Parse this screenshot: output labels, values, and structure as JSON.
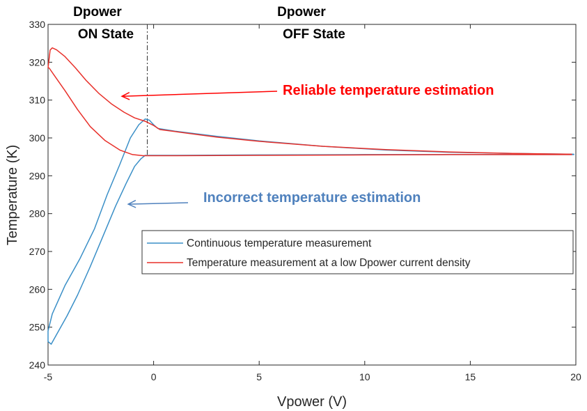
{
  "chart_data": {
    "type": "line",
    "xlabel": "Vpower (V)",
    "ylabel": "Temperature (K)",
    "xlim": [
      -5,
      20
    ],
    "ylim": [
      240,
      330
    ],
    "xticks": [
      -5,
      0,
      5,
      10,
      15,
      20
    ],
    "yticks": [
      240,
      250,
      260,
      270,
      280,
      290,
      300,
      310,
      320,
      330
    ],
    "grid": false,
    "legend_position": "center-right",
    "divider_x": -0.3,
    "state_labels": {
      "on": {
        "line1": "Dpower",
        "line2": "ON State"
      },
      "off": {
        "line1": "Dpower",
        "line2": "OFF State"
      }
    },
    "annotations": [
      {
        "text": "Reliable temperature estimation",
        "color": "#ff0000",
        "arrow_color": "#ff0000",
        "arrow_to": [
          -1.5,
          311
        ]
      },
      {
        "text": "Incorrect temperature estimation",
        "color": "#4f81bd",
        "arrow_color": "#4f81bd",
        "arrow_to": [
          -1.2,
          282.5
        ]
      }
    ],
    "series": [
      {
        "name": "Continuous temperature measurement",
        "color": "#3a8fc7",
        "points": [
          [
            -5,
            249
          ],
          [
            -4.8,
            253.5
          ],
          [
            -4.2,
            261
          ],
          [
            -3.5,
            268
          ],
          [
            -2.8,
            276
          ],
          [
            -2.2,
            285
          ],
          [
            -1.6,
            293
          ],
          [
            -1.1,
            300
          ],
          [
            -0.7,
            303.5
          ],
          [
            -0.4,
            305
          ],
          [
            -0.2,
            304.7
          ],
          [
            0,
            303.5
          ],
          [
            0.2,
            302.5
          ],
          [
            1,
            301.8
          ],
          [
            3,
            300.4
          ],
          [
            5,
            299.2
          ],
          [
            8,
            297.8
          ],
          [
            11,
            296.8
          ],
          [
            14,
            296.2
          ],
          [
            17,
            295.9
          ],
          [
            19.9,
            295.7
          ],
          [
            19.9,
            295.6
          ],
          [
            17,
            295.6
          ],
          [
            14,
            295.6
          ],
          [
            10,
            295.6
          ],
          [
            5,
            295.5
          ],
          [
            1,
            295.4
          ],
          [
            0,
            295.4
          ],
          [
            -0.4,
            295.4
          ],
          [
            -0.6,
            294.5
          ],
          [
            -0.9,
            292.5
          ],
          [
            -1.3,
            288
          ],
          [
            -1.8,
            282
          ],
          [
            -2.4,
            274
          ],
          [
            -3.0,
            266
          ],
          [
            -3.6,
            258.5
          ],
          [
            -4.1,
            253
          ],
          [
            -4.6,
            248
          ],
          [
            -4.85,
            245.5
          ],
          [
            -5,
            246.2
          ],
          [
            -5,
            249
          ]
        ]
      },
      {
        "name": "Temperature measurement at a low Dpower current density",
        "color": "#e8302a",
        "points": [
          [
            -5,
            318.5
          ],
          [
            -4.9,
            323.2
          ],
          [
            -4.8,
            323.8
          ],
          [
            -4.6,
            323.3
          ],
          [
            -4.2,
            321.5
          ],
          [
            -3.7,
            318.5
          ],
          [
            -3.2,
            315.2
          ],
          [
            -2.6,
            311.8
          ],
          [
            -2,
            309
          ],
          [
            -1.4,
            306.8
          ],
          [
            -0.9,
            305.3
          ],
          [
            -0.4,
            304.4
          ],
          [
            0,
            303.3
          ],
          [
            0.3,
            302.2
          ],
          [
            1,
            301.7
          ],
          [
            3,
            300.2
          ],
          [
            5,
            299.1
          ],
          [
            8,
            297.8
          ],
          [
            11,
            296.9
          ],
          [
            14,
            296.3
          ],
          [
            17,
            295.9
          ],
          [
            19.8,
            295.7
          ],
          [
            19.8,
            295.6
          ],
          [
            17,
            295.6
          ],
          [
            14,
            295.6
          ],
          [
            10,
            295.5
          ],
          [
            5,
            295.4
          ],
          [
            1,
            295.3
          ],
          [
            -0.5,
            295.3
          ],
          [
            -1.0,
            295.6
          ],
          [
            -1.6,
            296.8
          ],
          [
            -2.3,
            299.3
          ],
          [
            -3.0,
            303
          ],
          [
            -3.6,
            307.5
          ],
          [
            -4.2,
            312.5
          ],
          [
            -4.7,
            316.5
          ],
          [
            -4.95,
            318.5
          ],
          [
            -5,
            318.5
          ]
        ]
      }
    ]
  }
}
